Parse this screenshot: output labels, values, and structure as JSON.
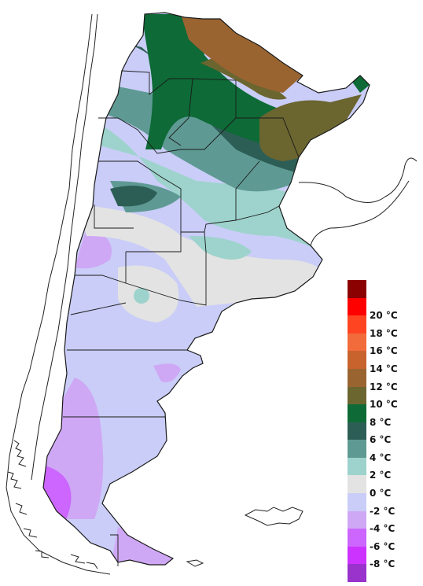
{
  "map": {
    "country": "Argentina",
    "variable": "temperature"
  },
  "legend": {
    "unit": "°C",
    "classes": [
      {
        "color": "#8B0000",
        "label": ""
      },
      {
        "color": "#FF0000",
        "label": "20 °C"
      },
      {
        "color": "#FF4422",
        "label": "18 °C"
      },
      {
        "color": "#F26B3A",
        "label": "16 °C"
      },
      {
        "color": "#C8632E",
        "label": "14 °C"
      },
      {
        "color": "#9A6431",
        "label": "12 °C"
      },
      {
        "color": "#6B6530",
        "label": "10 °C"
      },
      {
        "color": "#0E6A36",
        "label": "8 °C"
      },
      {
        "color": "#2D5E56",
        "label": "6 °C"
      },
      {
        "color": "#5E9A93",
        "label": "4 °C"
      },
      {
        "color": "#9DD3CC",
        "label": "2 °C"
      },
      {
        "color": "#E3E3E3",
        "label": "0 °C"
      },
      {
        "color": "#C9CDF7",
        "label": "-2 °C"
      },
      {
        "color": "#CFA8F5",
        "label": "-4 °C"
      },
      {
        "color": "#CC66FF",
        "label": "-6 °C"
      },
      {
        "color": "#CC33FF",
        "label": "-8 °C"
      },
      {
        "color": "#9933CC",
        "label": ""
      }
    ]
  }
}
